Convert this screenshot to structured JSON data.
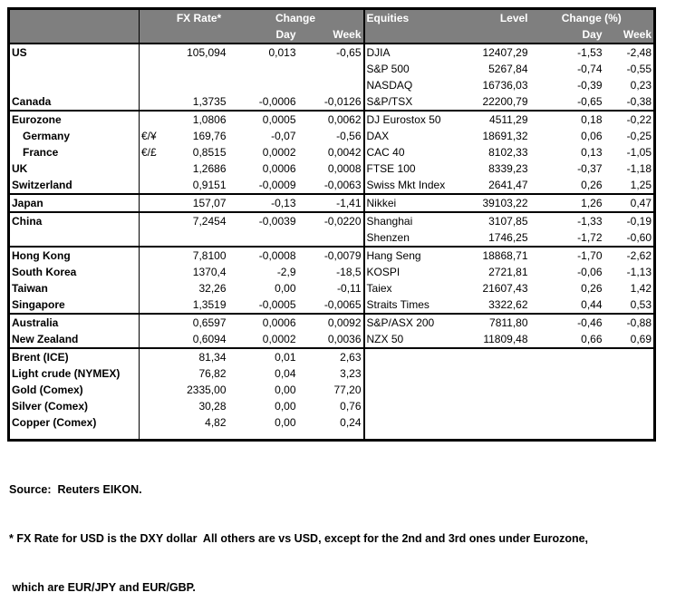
{
  "colors": {
    "header_bg": "#7f7f7f",
    "header_text": "#ffffff",
    "border": "#000000",
    "body_text": "#000000"
  },
  "table": {
    "header": {
      "fx_rate": "FX Rate*",
      "change": "Change",
      "day_left": "Day",
      "week_left": "Week",
      "equities": "Equities",
      "level": "Level",
      "change_pct": "Change (%)",
      "day_right": "Day",
      "week_right": "Week"
    },
    "groups": [
      {
        "rows": [
          {
            "label": "US",
            "cur": "",
            "fx": "105,094",
            "day": "0,013",
            "week": "-0,65",
            "eq": "DJIA",
            "level": "12407,29",
            "eday": "-1,53",
            "eweek": "-2,48"
          },
          {
            "label": "",
            "cur": "",
            "fx": "",
            "day": "",
            "week": "",
            "eq": "S&P 500",
            "level": "5267,84",
            "eday": "-0,74",
            "eweek": "-0,55"
          },
          {
            "label": "",
            "cur": "",
            "fx": "",
            "day": "",
            "week": "",
            "eq": "NASDAQ",
            "level": "16736,03",
            "eday": "-0,39",
            "eweek": "0,23"
          },
          {
            "label": "Canada",
            "cur": "",
            "fx": "1,3735",
            "day": "-0,0006",
            "week": "-0,0126",
            "eq": "S&P/TSX",
            "level": "22200,79",
            "eday": "-0,65",
            "eweek": "-0,38"
          }
        ]
      },
      {
        "rows": [
          {
            "label": "Eurozone",
            "cur": "",
            "fx": "1,0806",
            "day": "0,0005",
            "week": "0,0062",
            "eq": "DJ Eurostox 50",
            "level": "4511,29",
            "eday": "0,18",
            "eweek": "-0,22"
          },
          {
            "label": "Germany",
            "indent": true,
            "cur": "€/¥",
            "fx": "169,76",
            "day": "-0,07",
            "week": "-0,56",
            "eq": "DAX",
            "level": "18691,32",
            "eday": "0,06",
            "eweek": "-0,25"
          },
          {
            "label": "France",
            "indent": true,
            "cur": "€/£",
            "fx": "0,8515",
            "day": "0,0002",
            "week": "0,0042",
            "eq": "CAC 40",
            "level": "8102,33",
            "eday": "0,13",
            "eweek": "-1,05"
          },
          {
            "label": "UK",
            "cur": "",
            "fx": "1,2686",
            "day": "0,0006",
            "week": "0,0008",
            "eq": "FTSE 100",
            "level": "8339,23",
            "eday": "-0,37",
            "eweek": "-1,18"
          },
          {
            "label": "Switzerland",
            "cur": "",
            "fx": "0,9151",
            "day": "-0,0009",
            "week": "-0,0063",
            "eq": "Swiss Mkt Index",
            "level": "2641,47",
            "eday": "0,26",
            "eweek": "1,25"
          }
        ]
      },
      {
        "rows": [
          {
            "label": "Japan",
            "cur": "",
            "fx": "157,07",
            "day": "-0,13",
            "week": "-1,41",
            "eq": "Nikkei",
            "level": "39103,22",
            "eday": "1,26",
            "eweek": "0,47"
          }
        ]
      },
      {
        "rows": [
          {
            "label": "China",
            "cur": "",
            "fx": "7,2454",
            "day": "-0,0039",
            "week": "-0,0220",
            "eq": "Shanghai",
            "level": "3107,85",
            "eday": "-1,33",
            "eweek": "-0,19"
          },
          {
            "label": "",
            "cur": "",
            "fx": "",
            "day": "",
            "week": "",
            "eq": "Shenzen",
            "level": "1746,25",
            "eday": "-1,72",
            "eweek": "-0,60"
          }
        ]
      },
      {
        "rows": [
          {
            "label": "Hong Kong",
            "cur": "",
            "fx": "7,8100",
            "day": "-0,0008",
            "week": "-0,0079",
            "eq": "Hang Seng",
            "level": "18868,71",
            "eday": "-1,70",
            "eweek": "-2,62"
          },
          {
            "label": "South Korea",
            "cur": "",
            "fx": "1370,4",
            "day": "-2,9",
            "week": "-18,5",
            "eq": "KOSPI",
            "level": "2721,81",
            "eday": "-0,06",
            "eweek": "-1,13"
          },
          {
            "label": "Taiwan",
            "cur": "",
            "fx": "32,26",
            "day": "0,00",
            "week": "-0,11",
            "eq": "Taiex",
            "level": "21607,43",
            "eday": "0,26",
            "eweek": "1,42"
          },
          {
            "label": "Singapore",
            "cur": "",
            "fx": "1,3519",
            "day": "-0,0005",
            "week": "-0,0065",
            "eq": "Straits Times",
            "level": "3322,62",
            "eday": "0,44",
            "eweek": "0,53"
          }
        ]
      },
      {
        "rows": [
          {
            "label": "Australia",
            "cur": "",
            "fx": "0,6597",
            "day": "0,0006",
            "week": "0,0092",
            "eq": "S&P/ASX 200",
            "level": "7811,80",
            "eday": "-0,46",
            "eweek": "-0,88"
          },
          {
            "label": "New Zealand",
            "cur": "",
            "fx": "0,6094",
            "day": "0,0002",
            "week": "0,0036",
            "eq": "NZX 50",
            "level": "11809,48",
            "eday": "0,66",
            "eweek": "0,69"
          }
        ]
      },
      {
        "rows": [
          {
            "label": "Brent (ICE)",
            "cur": "",
            "fx": "81,34",
            "day": "0,01",
            "week": "2,63",
            "eq": "",
            "level": "",
            "eday": "",
            "eweek": ""
          },
          {
            "label": "Light crude (NYMEX)",
            "cur": "",
            "fx": "76,82",
            "day": "0,04",
            "week": "3,23",
            "eq": "",
            "level": "",
            "eday": "",
            "eweek": ""
          },
          {
            "label": "Gold (Comex)",
            "cur": "",
            "fx": "2335,00",
            "day": "0,00",
            "week": "77,20",
            "eq": "",
            "level": "",
            "eday": "",
            "eweek": ""
          },
          {
            "label": "Silver (Comex)",
            "cur": "",
            "fx": "30,28",
            "day": "0,00",
            "week": "0,76",
            "eq": "",
            "level": "",
            "eday": "",
            "eweek": ""
          },
          {
            "label": "Copper (Comex)",
            "cur": "",
            "fx": "4,82",
            "day": "0,00",
            "week": "0,24",
            "eq": "",
            "level": "",
            "eday": "",
            "eweek": ""
          }
        ]
      }
    ]
  },
  "footer": {
    "source": "Source:  Reuters EIKON.",
    "note1": "* FX Rate for USD is the DXY dollar  All others are vs USD, except for the 2nd and 3rd ones under Eurozone,",
    "note2": " which are EUR/JPY and EUR/GBP."
  }
}
